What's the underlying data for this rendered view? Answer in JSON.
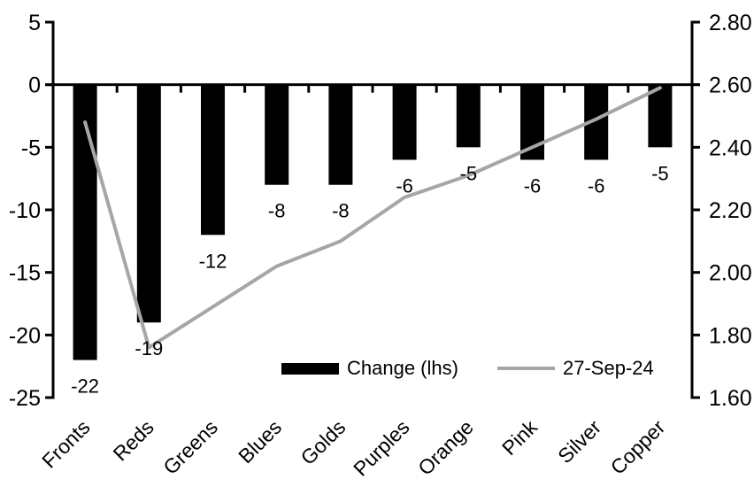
{
  "chart_data": {
    "type": "bar",
    "subtype": "bar-line-combo",
    "title": "",
    "grid": false,
    "categories": [
      "Fronts",
      "Reds",
      "Greens",
      "Blues",
      "Golds",
      "Purples",
      "Orange",
      "Pink",
      "Silver",
      "Copper"
    ],
    "series": [
      {
        "name": "Change (lhs)",
        "type": "bar",
        "axis": "left",
        "color": "#000000",
        "values": [
          -22,
          -19,
          -12,
          -8,
          -8,
          -6,
          -5,
          -6,
          -6,
          -5
        ],
        "data_labels": [
          "-22",
          "-19",
          "-12",
          "-8",
          "-8",
          "-6",
          "-5",
          "-6",
          "-6",
          "-5"
        ]
      },
      {
        "name": "27-Sep-24",
        "type": "line",
        "axis": "right",
        "color": "#a6a6a6",
        "values": [
          2.48,
          1.76,
          1.89,
          2.02,
          2.1,
          2.24,
          2.31,
          2.4,
          2.49,
          2.59
        ]
      }
    ],
    "left_axis": {
      "min": -25,
      "max": 5,
      "tick_step": 5,
      "tick_labels": [
        "5",
        "0",
        "-5",
        "-10",
        "-15",
        "-20",
        "-25"
      ]
    },
    "right_axis": {
      "min": 1.6,
      "max": 2.8,
      "tick_step": 0.2,
      "tick_labels": [
        "2.80",
        "2.60",
        "2.40",
        "2.20",
        "2.00",
        "1.80",
        "1.60"
      ]
    },
    "legend": {
      "position": "bottom-inside",
      "items": [
        {
          "label": "Change (lhs)",
          "marker": "bar",
          "color": "#000000"
        },
        {
          "label": "27-Sep-24",
          "marker": "line",
          "color": "#a6a6a6"
        }
      ]
    }
  },
  "colors": {
    "background": "#ffffff",
    "axis": "#000000",
    "text": "#000000",
    "bar_series": "#000000",
    "line_series": "#a6a6a6"
  }
}
